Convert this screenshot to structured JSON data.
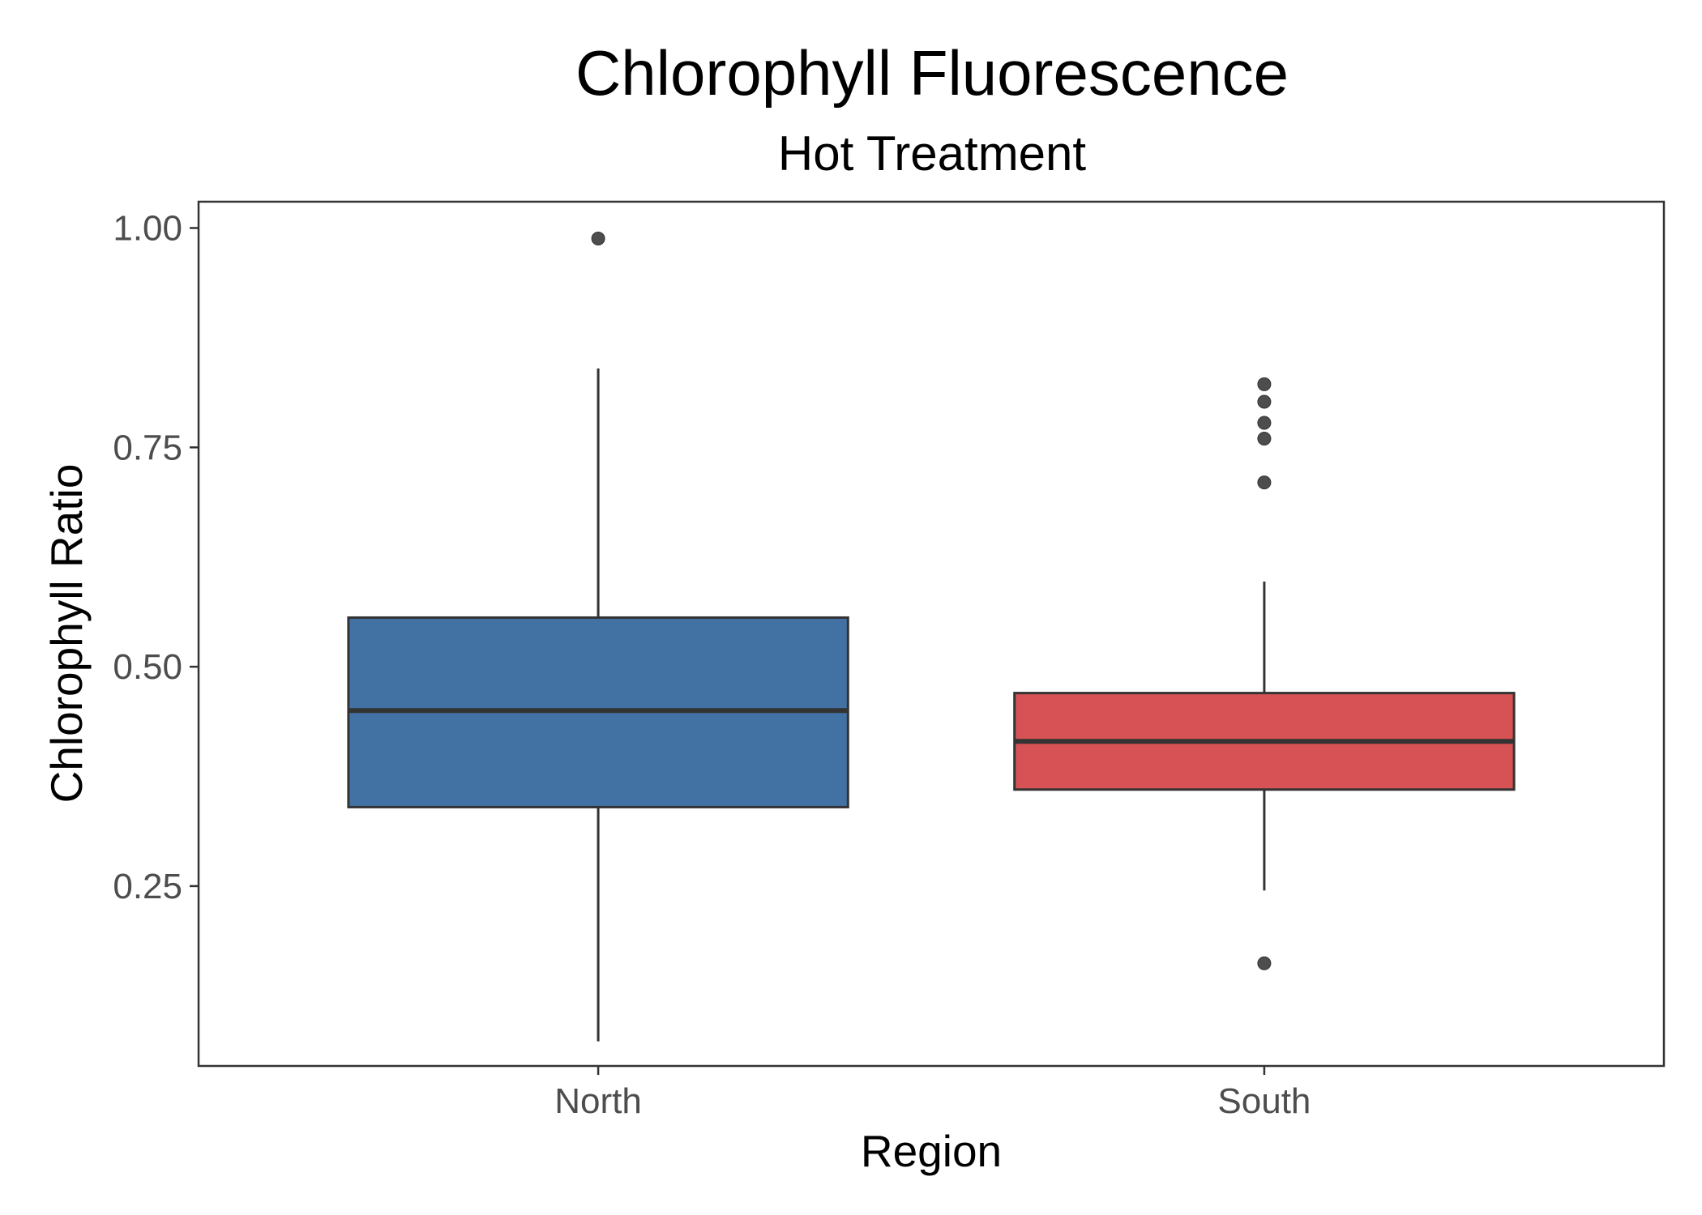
{
  "chart_data": {
    "type": "boxplot",
    "title": "Chlorophyll Fluorescence",
    "subtitle": "Hot Treatment",
    "xlabel": "Region",
    "ylabel": "Chlorophyll Ratio",
    "ylim": [
      0.045,
      1.03
    ],
    "y_ticks": [
      0.25,
      0.5,
      0.75,
      1.0
    ],
    "y_tick_labels": [
      "0.25",
      "0.50",
      "0.75",
      "1.00"
    ],
    "grid": false,
    "legend": "none",
    "categories": [
      "North",
      "South"
    ],
    "boxes": [
      {
        "category": "North",
        "color": "#4272a4",
        "whisker_low": 0.073,
        "q1": 0.34,
        "median": 0.45,
        "q3": 0.556,
        "whisker_high": 0.84,
        "outliers": [
          0.988
        ]
      },
      {
        "category": "South",
        "color": "#d65254",
        "whisker_low": 0.245,
        "q1": 0.36,
        "median": 0.415,
        "q3": 0.47,
        "whisker_high": 0.597,
        "outliers": [
          0.162,
          0.71,
          0.76,
          0.778,
          0.802,
          0.822
        ]
      }
    ]
  }
}
